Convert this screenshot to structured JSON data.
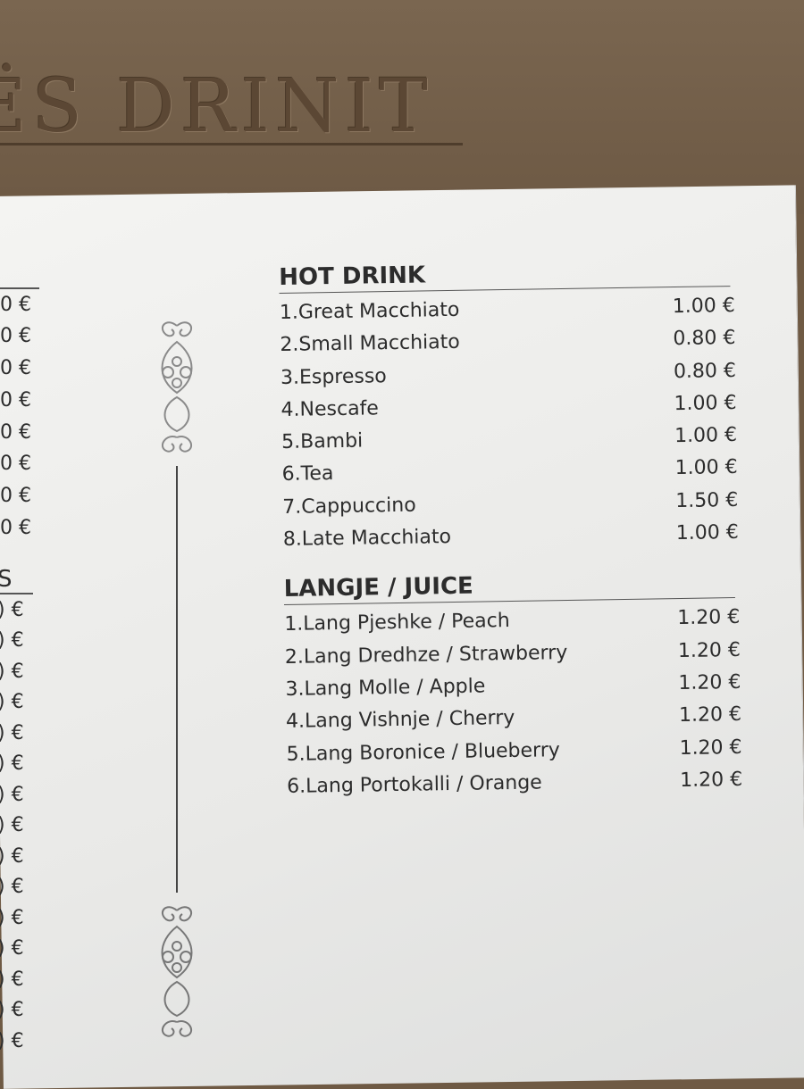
{
  "sign": {
    "text": "ËS DRINIT"
  },
  "left_column": {
    "prices_top": [
      "0 €",
      "0 €",
      "0 €",
      "0 €",
      "0 €",
      "0 €",
      "0 €",
      "0 €"
    ],
    "section_fragment": "S",
    "prices_bottom": [
      ") €",
      ") €",
      ") €",
      ") €",
      ") €",
      ") €",
      ") €",
      ") €",
      ") €",
      ") €",
      ") €",
      ") €",
      ") €",
      ") €",
      ") €"
    ]
  },
  "sections": [
    {
      "title": "HOT DRINK",
      "items": [
        {
          "name": "1.Great Macchiato",
          "price": "1.00 €"
        },
        {
          "name": "2.Small Macchiato",
          "price": "0.80 €"
        },
        {
          "name": "3.Espresso",
          "price": "0.80 €"
        },
        {
          "name": "4.Nescafe",
          "price": "1.00 €"
        },
        {
          "name": "5.Bambi",
          "price": "1.00 €"
        },
        {
          "name": "6.Tea",
          "price": "1.00 €"
        },
        {
          "name": "7.Cappuccino",
          "price": "1.50 €"
        },
        {
          "name": "8.Late Macchiato",
          "price": "1.00 €"
        }
      ]
    },
    {
      "title": "LANGJE / JUICE",
      "items": [
        {
          "name": "1.Lang Pjeshke / Peach",
          "price": "1.20 €"
        },
        {
          "name": "2.Lang Dredhze / Strawberry",
          "price": "1.20 €"
        },
        {
          "name": "3.Lang Molle / Apple",
          "price": "1.20 €"
        },
        {
          "name": "4.Lang Vishnje / Cherry",
          "price": "1.20 €"
        },
        {
          "name": "5.Lang Boronice / Blueberry",
          "price": "1.20 €"
        },
        {
          "name": "6.Lang Portokalli / Orange",
          "price": "1.20 €"
        }
      ]
    }
  ]
}
